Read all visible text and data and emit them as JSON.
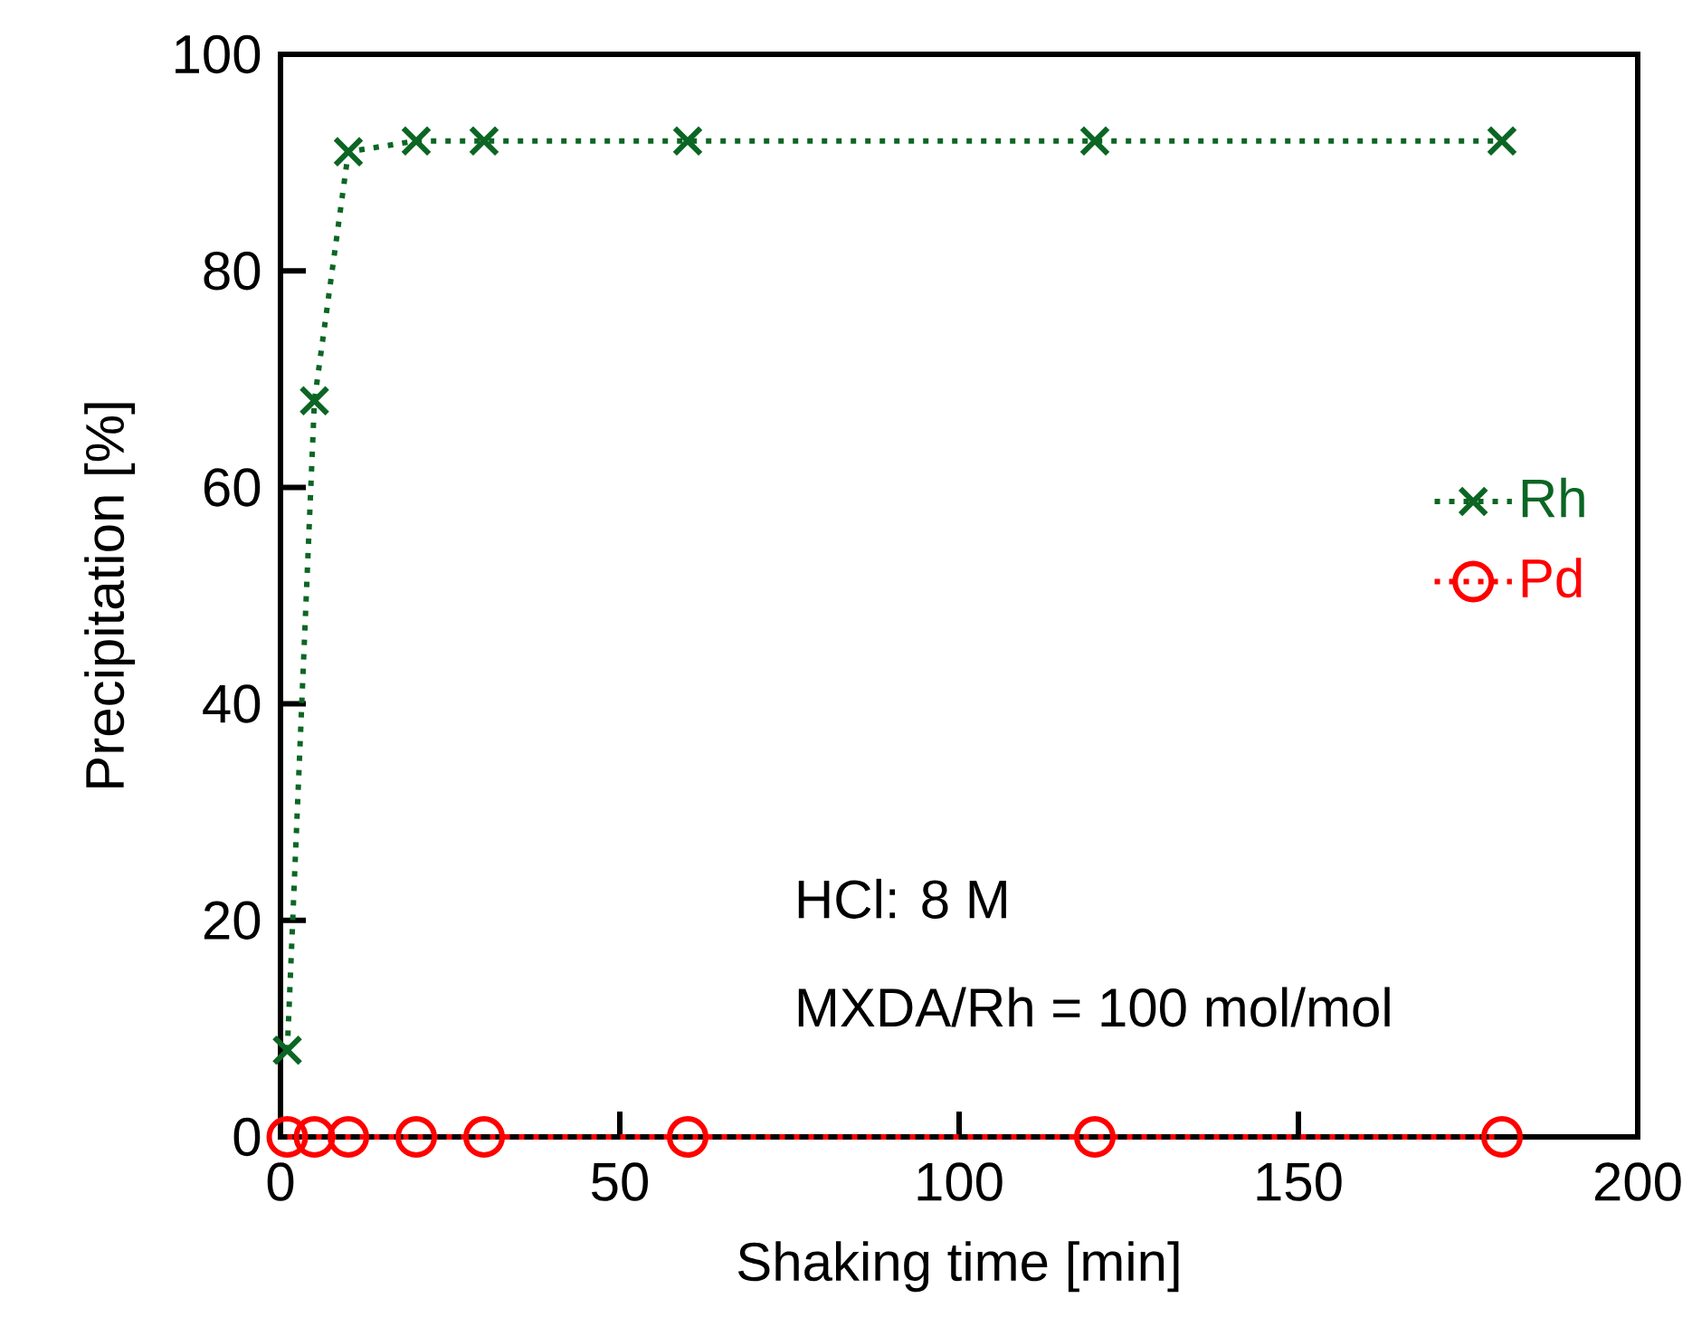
{
  "chart_data": {
    "type": "line",
    "xlabel": "Shaking time [min]",
    "ylabel": "Precipitation [%]",
    "xlim": [
      0,
      200
    ],
    "ylim": [
      0,
      100
    ],
    "xticks": [
      0,
      50,
      100,
      150,
      200
    ],
    "yticks": [
      0,
      20,
      40,
      60,
      80,
      100
    ],
    "legend": "right",
    "line_style": "dotted",
    "annotations": [
      "HCl: 8 M",
      "MXDA/Rh = 100 mol/mol"
    ],
    "series": [
      {
        "name": "Rh",
        "color": "#0b6623",
        "marker": "cross",
        "x": [
          1,
          5,
          10,
          20,
          30,
          60,
          120,
          180
        ],
        "values": [
          8,
          68,
          91,
          92,
          92,
          92,
          92,
          92
        ]
      },
      {
        "name": "Pd",
        "color": "#ff0000",
        "marker": "circle",
        "x": [
          1,
          5,
          10,
          20,
          30,
          60,
          120,
          180
        ],
        "values": [
          0,
          0,
          0,
          0,
          0,
          0,
          0,
          0
        ]
      }
    ]
  }
}
